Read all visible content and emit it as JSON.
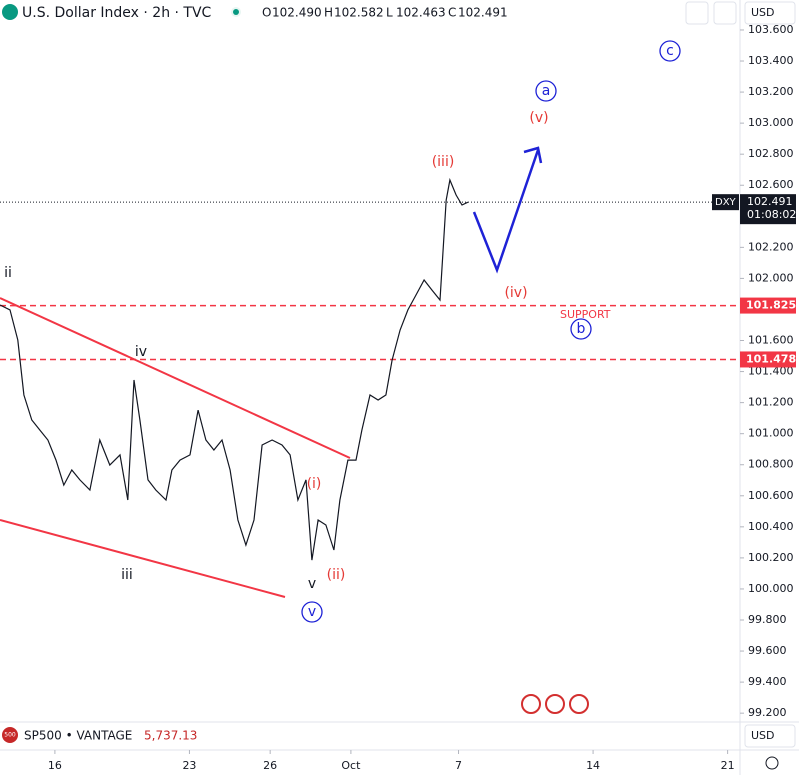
{
  "header": {
    "title": "U.S. Dollar Index · 2h · TVC",
    "ohlc": [
      {
        "key": "O",
        "value": "102.490"
      },
      {
        "key": "H",
        "value": "102.582"
      },
      {
        "key": "L",
        "value": "102.463"
      },
      {
        "key": "C",
        "value": "102.491"
      }
    ],
    "currency": "USD"
  },
  "chart_data": {
    "type": "line",
    "color": "#131722",
    "x": [
      -2.04,
      -1.67,
      -1.38,
      -1.15,
      -0.86,
      -0.56,
      -0.26,
      0.04,
      0.33,
      0.63,
      0.93,
      1.3,
      1.67,
      2.04,
      2.42,
      2.71,
      2.94,
      3.16,
      3.46,
      3.75,
      4.13,
      4.35,
      4.65,
      5.02,
      5.32,
      5.61,
      5.91,
      6.21,
      6.51,
      6.8,
      7.1,
      7.4,
      7.7,
      8.07,
      8.44,
      8.74,
      9.03,
      9.33,
      9.55,
      9.78,
      10.07,
      10.37,
      10.59,
      10.89,
      11.19,
      11.41,
      11.71,
      12.01,
      12.3,
      12.53,
      12.83,
      13.12,
      13.42,
      13.72,
      14.01,
      14.31,
      14.54,
      14.68,
      14.91,
      15.13,
      15.35
    ],
    "values": [
      101.829,
      101.797,
      101.603,
      101.249,
      101.088,
      101.024,
      100.959,
      100.83,
      100.669,
      100.766,
      100.702,
      100.637,
      100.959,
      100.798,
      100.863,
      100.573,
      101.346,
      101.088,
      100.702,
      100.637,
      100.573,
      100.766,
      100.83,
      100.863,
      101.152,
      100.959,
      100.895,
      100.959,
      100.766,
      100.444,
      100.283,
      100.444,
      100.927,
      100.959,
      100.927,
      100.863,
      100.573,
      100.702,
      100.186,
      100.444,
      100.412,
      100.251,
      100.573,
      100.83,
      100.83,
      101.024,
      101.249,
      101.217,
      101.249,
      101.474,
      101.668,
      101.797,
      101.893,
      101.99,
      101.925,
      101.861,
      102.505,
      102.634,
      102.537,
      102.473,
      102.491
    ],
    "xlim": [
      -2.04,
      25.46
    ],
    "xticks": [
      {
        "value": 0,
        "label": "16"
      },
      {
        "value": 5,
        "label": "23"
      },
      {
        "value": 8,
        "label": "26"
      },
      {
        "value": 11,
        "label": "Oct"
      },
      {
        "value": 15,
        "label": "7"
      },
      {
        "value": 20,
        "label": "14"
      },
      {
        "value": 25,
        "label": "21"
      }
    ],
    "ylim": [
      99.156,
      103.793
    ],
    "yticks": [
      {
        "value": 99.2,
        "label": "99.200"
      },
      {
        "value": 99.4,
        "label": "99.400"
      },
      {
        "value": 99.6,
        "label": "99.600"
      },
      {
        "value": 99.8,
        "label": "99.800"
      },
      {
        "value": 100,
        "label": "100.000"
      },
      {
        "value": 100.2,
        "label": "100.200"
      },
      {
        "value": 100.4,
        "label": "100.400"
      },
      {
        "value": 100.6,
        "label": "100.600"
      },
      {
        "value": 100.8,
        "label": "100.800"
      },
      {
        "value": 101,
        "label": "101.000"
      },
      {
        "value": 101.2,
        "label": "101.200"
      },
      {
        "value": 101.4,
        "label": "101.400"
      },
      {
        "value": 101.6,
        "label": "101.600"
      },
      {
        "value": 101.8,
        "label": "101.800"
      },
      {
        "value": 102,
        "label": "102.000"
      },
      {
        "value": 102.2,
        "label": "102.200"
      },
      {
        "value": 102.4,
        "label": "102.400"
      },
      {
        "value": 102.6,
        "label": "102.600"
      },
      {
        "value": 102.8,
        "label": "102.800"
      },
      {
        "value": 103,
        "label": "103.000"
      },
      {
        "value": 103.2,
        "label": "103.200"
      },
      {
        "value": 103.4,
        "label": "103.400"
      },
      {
        "value": 103.6,
        "label": "103.600"
      }
    ],
    "last_price": 102.491,
    "symbol": "DXY",
    "countdown": "01:08:02",
    "levels": [
      101.825,
      101.478
    ],
    "support_label": "SUPPORT",
    "wave_labels": [
      "ii",
      "iv",
      "iii",
      "v",
      "v",
      "(i)",
      "(ii)",
      "(iii)",
      "(v)",
      "(iv)",
      "a",
      "b",
      "c"
    ],
    "compare": {
      "symbol": "SP500 • VANTAGE",
      "value": "5,737.13",
      "icon": "500"
    }
  }
}
